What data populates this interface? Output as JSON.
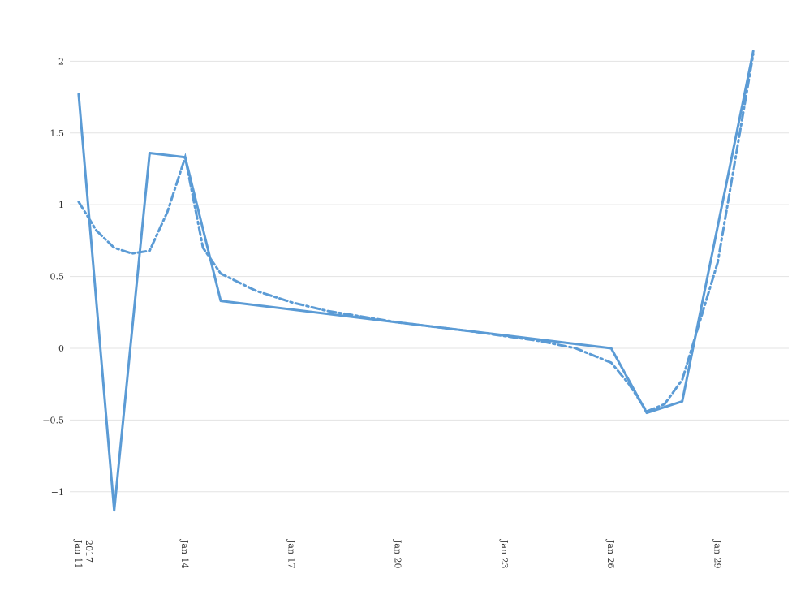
{
  "chart_data": {
    "type": "line",
    "title": "",
    "xlabel": "",
    "ylabel": "",
    "grid": true,
    "legend": "none",
    "color": "#5b9bd5",
    "x_range": [
      "2017-01-10T18:00",
      "2017-01-31T00:00"
    ],
    "ylim": [
      -1.25,
      2.2
    ],
    "y_ticks": [
      {
        "value": 2,
        "label": "2"
      },
      {
        "value": 1.5,
        "label": "1.5"
      },
      {
        "value": 1,
        "label": "1"
      },
      {
        "value": 0.5,
        "label": "0.5"
      },
      {
        "value": 0,
        "label": "0"
      },
      {
        "value": -0.5,
        "label": "−0.5"
      },
      {
        "value": -1,
        "label": "−1"
      }
    ],
    "x_ticks": [
      {
        "date": "2017-01-11",
        "label": "Jan 11",
        "sublabel": "2017"
      },
      {
        "date": "2017-01-14",
        "label": "Jan 14"
      },
      {
        "date": "2017-01-17",
        "label": "Jan 17"
      },
      {
        "date": "2017-01-20",
        "label": "Jan 20"
      },
      {
        "date": "2017-01-23",
        "label": "Jan 23"
      },
      {
        "date": "2017-01-26",
        "label": "Jan 26"
      },
      {
        "date": "2017-01-29",
        "label": "Jan 29"
      }
    ],
    "series": [
      {
        "style": "solid",
        "points": [
          {
            "x": "2017-01-11",
            "y": 1.77
          },
          {
            "x": "2017-01-12",
            "y": -1.13
          },
          {
            "x": "2017-01-13",
            "y": 1.36
          },
          {
            "x": "2017-01-14",
            "y": 1.33
          },
          {
            "x": "2017-01-15",
            "y": 0.33
          },
          {
            "x": "2017-01-26",
            "y": 0.0
          },
          {
            "x": "2017-01-27",
            "y": -0.45
          },
          {
            "x": "2017-01-28",
            "y": -0.37
          },
          {
            "x": "2017-01-30",
            "y": 2.07
          }
        ]
      },
      {
        "style": "dash-dot",
        "points": [
          {
            "x": "2017-01-11",
            "y": 1.02
          },
          {
            "x": "2017-01-11T12:00",
            "y": 0.82
          },
          {
            "x": "2017-01-12",
            "y": 0.7
          },
          {
            "x": "2017-01-12T12:00",
            "y": 0.66
          },
          {
            "x": "2017-01-13",
            "y": 0.68
          },
          {
            "x": "2017-01-13T12:00",
            "y": 0.95
          },
          {
            "x": "2017-01-14",
            "y": 1.33
          },
          {
            "x": "2017-01-14T12:00",
            "y": 0.7
          },
          {
            "x": "2017-01-15",
            "y": 0.52
          },
          {
            "x": "2017-01-16",
            "y": 0.4
          },
          {
            "x": "2017-01-17",
            "y": 0.32
          },
          {
            "x": "2017-01-18",
            "y": 0.26
          },
          {
            "x": "2017-01-20",
            "y": 0.18
          },
          {
            "x": "2017-01-22",
            "y": 0.12
          },
          {
            "x": "2017-01-24",
            "y": 0.05
          },
          {
            "x": "2017-01-25",
            "y": 0.0
          },
          {
            "x": "2017-01-26",
            "y": -0.1
          },
          {
            "x": "2017-01-26T12:00",
            "y": -0.25
          },
          {
            "x": "2017-01-27",
            "y": -0.44
          },
          {
            "x": "2017-01-27T12:00",
            "y": -0.39
          },
          {
            "x": "2017-01-28",
            "y": -0.22
          },
          {
            "x": "2017-01-29",
            "y": 0.6
          },
          {
            "x": "2017-01-30",
            "y": 2.05
          }
        ]
      }
    ]
  }
}
